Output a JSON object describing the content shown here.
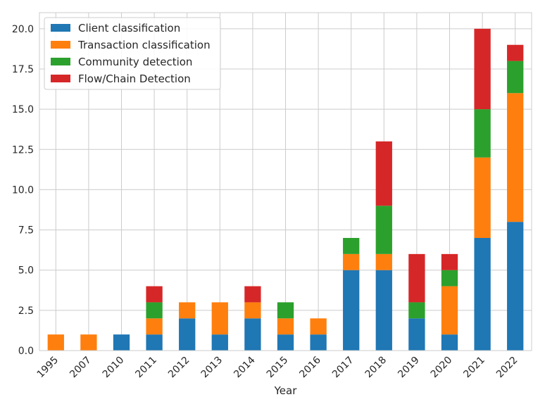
{
  "chart_data": {
    "type": "bar",
    "stacked": true,
    "xlabel": "Year",
    "ylabel": "",
    "title": "",
    "ylim": [
      0,
      21
    ],
    "yticks": [
      0.0,
      2.5,
      5.0,
      7.5,
      10.0,
      12.5,
      15.0,
      17.5,
      20.0
    ],
    "ytick_labels": [
      "0.0",
      "2.5",
      "5.0",
      "7.5",
      "10.0",
      "12.5",
      "15.0",
      "17.5",
      "20.0"
    ],
    "grid": true,
    "legend_position": "top-left",
    "categories": [
      "1995",
      "2007",
      "2010",
      "2011",
      "2012",
      "2013",
      "2014",
      "2015",
      "2016",
      "2017",
      "2018",
      "2019",
      "2020",
      "2021",
      "2022"
    ],
    "series": [
      {
        "name": "Client classification",
        "color": "#1f77b4",
        "values": [
          0,
          0,
          1,
          1,
          2,
          1,
          2,
          1,
          1,
          5,
          5,
          2,
          1,
          7,
          8
        ]
      },
      {
        "name": "Transaction classification",
        "color": "#ff7f0e",
        "values": [
          1,
          1,
          0,
          1,
          1,
          2,
          1,
          1,
          1,
          1,
          1,
          0,
          3,
          5,
          8
        ]
      },
      {
        "name": "Community detection",
        "color": "#2ca02c",
        "values": [
          0,
          0,
          0,
          1,
          0,
          0,
          0,
          1,
          0,
          1,
          3,
          1,
          1,
          3,
          2
        ]
      },
      {
        "name": "Flow/Chain Detection",
        "color": "#d62728",
        "values": [
          0,
          0,
          0,
          1,
          0,
          0,
          1,
          0,
          0,
          0,
          4,
          3,
          1,
          5,
          1
        ]
      }
    ]
  }
}
